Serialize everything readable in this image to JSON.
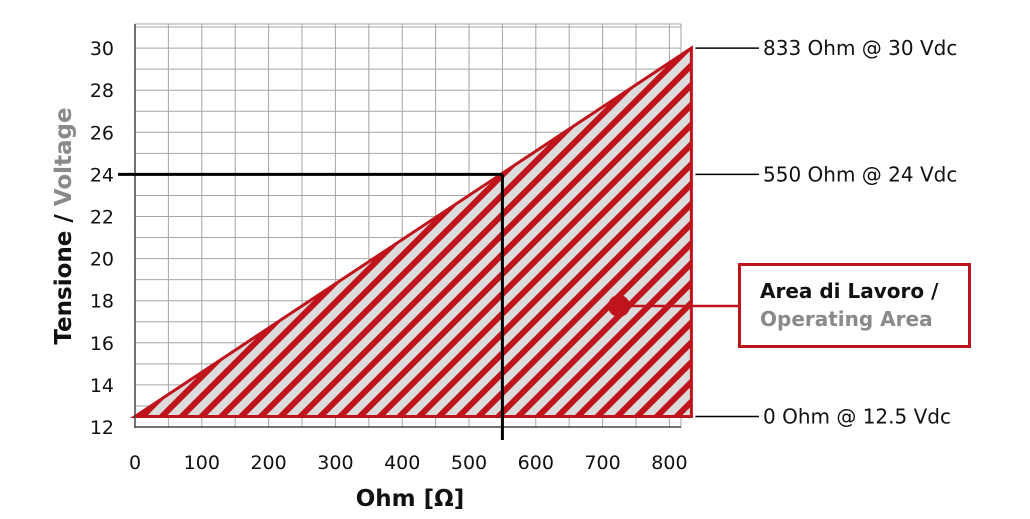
{
  "chart_data": {
    "type": "area",
    "xlabel": "Ohm [Ω]",
    "ylabel_part1": "Tensione",
    "ylabel_sep": " / ",
    "ylabel_part2": "Voltage",
    "xlim": [
      0,
      833
    ],
    "ylim": [
      12,
      30
    ],
    "x_ticks": [
      0,
      100,
      200,
      300,
      400,
      500,
      600,
      700,
      800
    ],
    "y_ticks": [
      12,
      14,
      16,
      18,
      20,
      22,
      24,
      26,
      28,
      30
    ],
    "grid": true,
    "operating_area": [
      {
        "x": 0,
        "y": 12.5
      },
      {
        "x": 833,
        "y": 30
      },
      {
        "x": 833,
        "y": 12.5
      }
    ],
    "reference_point": {
      "x": 550,
      "y": 24
    },
    "annotations": [
      {
        "id": "top",
        "text": "833 Ohm @ 30 Vdc",
        "x": 833,
        "y": 30
      },
      {
        "id": "mid",
        "text": "550 Ohm @ 24 Vdc",
        "x": 833,
        "y": 24
      },
      {
        "id": "bottom",
        "text": "0 Ohm @ 12.5 Vdc",
        "x": 833,
        "y": 12.5
      }
    ],
    "legend": {
      "line1": "Area di Lavoro /",
      "line2": "Operating Area",
      "placement": "right"
    },
    "colors": {
      "area_stroke": "#c0141c",
      "hatch": "#c0141c",
      "area_fill": "#dcdcdc",
      "grid": "#a6a6a6",
      "ylabel_part2": "#8a8a8a"
    }
  }
}
